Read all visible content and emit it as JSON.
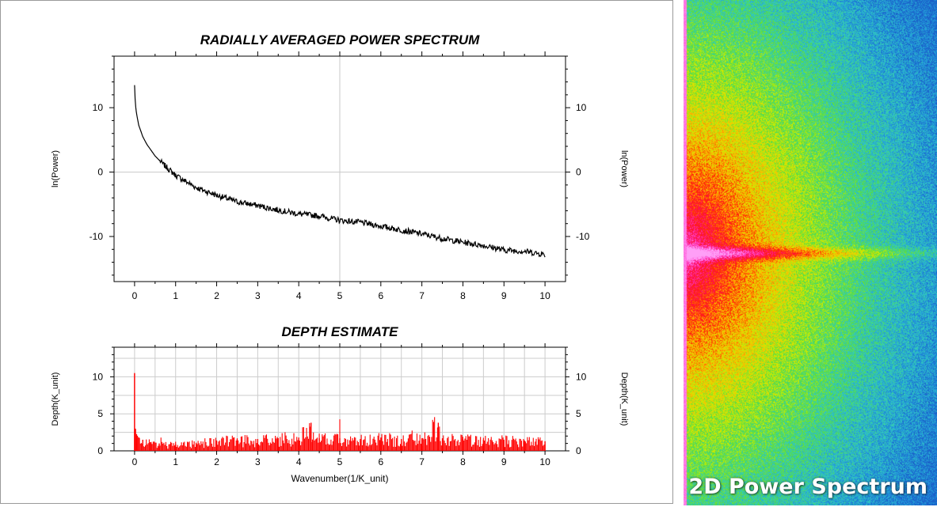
{
  "chart_data": [
    {
      "type": "line",
      "title": "RADIALLY AVERAGED POWER SPECTRUM",
      "ylabel": "ln(Power)",
      "xlim": [
        -0.5,
        10.5
      ],
      "ylim": [
        -17,
        18
      ],
      "xticks": [
        0,
        1,
        2,
        3,
        4,
        5,
        6,
        7,
        8,
        9,
        10
      ],
      "yticks": [
        -10,
        0,
        10
      ],
      "grid": true,
      "color": "#000000",
      "series": [
        {
          "x": [
            0.0,
            0.02,
            0.05,
            0.1,
            0.2,
            0.3,
            0.5,
            0.7,
            1.0,
            1.5,
            2.0,
            2.5,
            3.0,
            3.5,
            4.0,
            4.5,
            5.0,
            5.5,
            6.0,
            6.5,
            7.0,
            7.5,
            8.0,
            8.5,
            9.0,
            9.5,
            10.0
          ],
          "y": [
            13.5,
            10.5,
            9.0,
            7.3,
            5.5,
            4.3,
            2.5,
            1.2,
            -0.5,
            -2.4,
            -3.6,
            -4.6,
            -5.2,
            -5.9,
            -6.5,
            -6.8,
            -7.5,
            -7.8,
            -8.4,
            -9.0,
            -9.6,
            -10.3,
            -10.9,
            -11.4,
            -12.1,
            -12.3,
            -12.8
          ]
        }
      ]
    },
    {
      "type": "bar",
      "title": "DEPTH ESTIMATE",
      "xlabel": "Wavenumber(1/K_unit)",
      "ylabel": "Depth(K_unit)",
      "xlim": [
        -0.5,
        10.5
      ],
      "ylim": [
        0,
        14
      ],
      "xticks": [
        0,
        1,
        2,
        3,
        4,
        5,
        6,
        7,
        8,
        9,
        10
      ],
      "yticks": [
        0,
        5,
        10
      ],
      "grid": true,
      "color": "#ff0000",
      "series": [
        {
          "x": [
            0.0,
            0.02,
            0.05,
            0.1,
            0.2,
            0.4,
            0.6,
            1.0,
            1.5,
            2.0,
            2.5,
            3.0,
            3.5,
            4.0,
            4.3,
            4.5,
            5.0,
            5.5,
            6.0,
            6.5,
            7.0,
            7.4,
            7.5,
            8.0,
            8.5,
            9.0,
            9.5,
            10.0
          ],
          "y": [
            10.5,
            3.0,
            2.2,
            1.8,
            1.5,
            1.2,
            1.0,
            0.9,
            1.1,
            1.4,
            1.6,
            1.6,
            1.7,
            1.8,
            3.8,
            1.7,
            1.7,
            1.6,
            1.8,
            1.6,
            1.7,
            3.8,
            1.7,
            1.6,
            1.5,
            1.5,
            1.4,
            1.3
          ]
        }
      ]
    }
  ],
  "spectrum_panel": {
    "title": "2D Power Spectrum",
    "colormap": [
      "#ff9ff7",
      "#ff3ec9",
      "#ff0b4c",
      "#ff2a00",
      "#ffbb00",
      "#ccee00",
      "#55dd44",
      "#33ccbb",
      "#2299dd",
      "#1a5fc8"
    ]
  }
}
